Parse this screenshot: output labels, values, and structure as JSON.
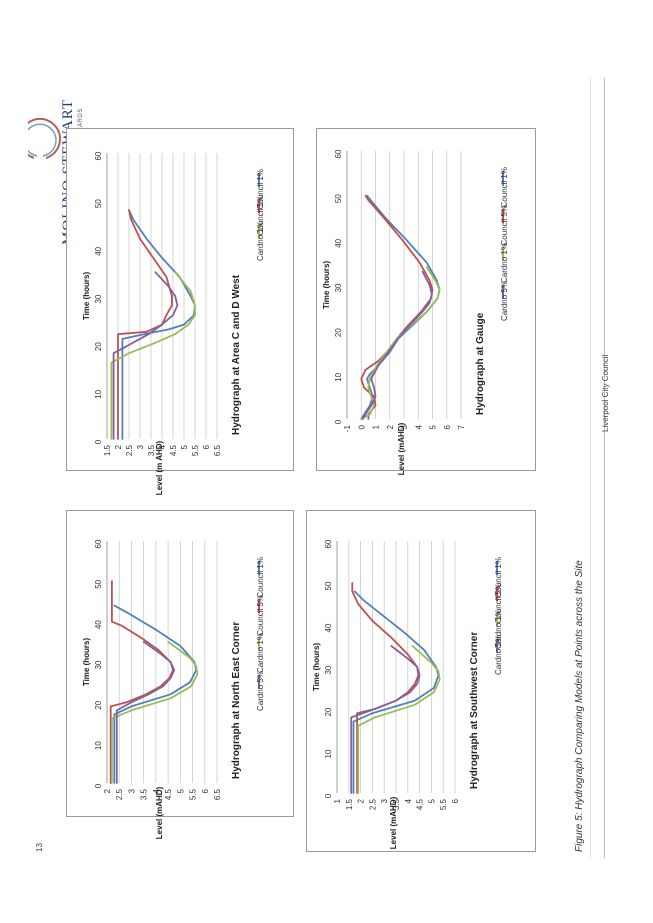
{
  "header": {
    "logo_main": "MOLINO STEWART",
    "logo_sub": "ENVIRONMENT & NATURAL HAZARDS"
  },
  "footer": {
    "page_number": "13",
    "organization": "Liverpool City Council"
  },
  "figure": {
    "caption": "Figure 5:   Hydrograph Comparing Models at Points across the Site"
  },
  "colors": {
    "council_1": "#4f81bd",
    "council_5": "#c0504d",
    "cardno_1": "#9bbb59",
    "cardno_5": "#8064a2"
  },
  "chart_data": [
    {
      "id": "ne",
      "type": "line",
      "title": "Hydrograph at North East Corner",
      "xlabel": "Time (hours)",
      "ylabel": "Level (mAHD)",
      "xlim": [
        0,
        60
      ],
      "ylim": [
        2,
        6.5
      ],
      "xticks": [
        "0",
        "10",
        "20",
        "30",
        "40",
        "50",
        "60"
      ],
      "yticks": [
        "2",
        "2.5",
        "3",
        "3.5",
        "4",
        "4.5",
        "5",
        "5.5",
        "6",
        "6.5"
      ],
      "grid": true,
      "legend": [
        "Council 1%",
        "Council 5%",
        "Cardno 1%",
        "Cardno 5%"
      ],
      "series": [
        {
          "name": "Council 1%",
          "x": [
            0,
            17,
            19,
            22,
            25,
            28,
            30,
            34,
            38,
            42,
            44
          ],
          "y": [
            2.3,
            2.3,
            3.0,
            4.6,
            5.4,
            5.65,
            5.58,
            5.0,
            4.0,
            2.9,
            2.3
          ]
        },
        {
          "name": "Council 5%",
          "x": [
            0,
            19,
            20,
            22,
            24,
            26,
            28,
            30,
            33,
            36,
            39,
            40,
            50
          ],
          "y": [
            2.15,
            2.15,
            2.8,
            3.6,
            4.2,
            4.55,
            4.7,
            4.6,
            4.1,
            3.4,
            2.6,
            2.2,
            2.2
          ]
        },
        {
          "name": "Cardno 1%",
          "x": [
            0,
            16,
            18,
            21,
            24,
            27,
            29,
            31,
            35
          ],
          "y": [
            2.2,
            2.2,
            3.0,
            4.6,
            5.45,
            5.7,
            5.65,
            5.4,
            4.5
          ]
        },
        {
          "name": "Cardno 5%",
          "x": [
            0,
            18,
            20,
            22,
            24,
            26,
            28,
            30,
            32,
            35
          ],
          "y": [
            2.4,
            2.4,
            3.0,
            3.7,
            4.3,
            4.6,
            4.75,
            4.6,
            4.2,
            3.5
          ]
        }
      ]
    },
    {
      "id": "sw",
      "type": "line",
      "title": "Hydrograph at Southwest Corner",
      "xlabel": "Time (hours)",
      "ylabel": "Level (mAHD)",
      "xlim": [
        0,
        60
      ],
      "ylim": [
        1,
        6
      ],
      "xticks": [
        "0",
        "10",
        "20",
        "30",
        "40",
        "50",
        "60"
      ],
      "yticks": [
        "1",
        "1.5",
        "2",
        "2.5",
        "3",
        "3.5",
        "4",
        "4.5",
        "5",
        "5.5",
        "6"
      ],
      "grid": true,
      "legend": [
        "Council 1%",
        "Council 5%",
        "Cardno 1%",
        "Cardno 5%"
      ],
      "series": [
        {
          "name": "Council 1%",
          "x": [
            0,
            17,
            19,
            22,
            25,
            28,
            30,
            34,
            38,
            42,
            46,
            48
          ],
          "y": [
            1.7,
            1.7,
            2.5,
            4.3,
            5.1,
            5.3,
            5.2,
            4.7,
            3.9,
            3.0,
            2.1,
            1.75
          ]
        },
        {
          "name": "Council 5%",
          "x": [
            0,
            19,
            20,
            22,
            24,
            26,
            28,
            30,
            33,
            37,
            41,
            45,
            48,
            50
          ],
          "y": [
            1.85,
            1.85,
            2.6,
            3.5,
            4.0,
            4.3,
            4.45,
            4.4,
            4.0,
            3.3,
            2.5,
            1.9,
            1.65,
            1.65
          ]
        },
        {
          "name": "Cardno 1%",
          "x": [
            0,
            16,
            18,
            21,
            24,
            27,
            29,
            31,
            35
          ],
          "y": [
            1.9,
            1.9,
            2.6,
            4.3,
            5.1,
            5.35,
            5.3,
            5.0,
            4.2
          ]
        },
        {
          "name": "Cardno 5%",
          "x": [
            0,
            18,
            20,
            22,
            24,
            26,
            28,
            30,
            32,
            35
          ],
          "y": [
            1.6,
            1.6,
            2.6,
            3.5,
            4.1,
            4.4,
            4.5,
            4.4,
            4.0,
            3.3
          ]
        }
      ]
    },
    {
      "id": "acd",
      "type": "line",
      "title": "Hydrograph at Area C and D West",
      "xlabel": "Time (hours)",
      "ylabel": "Level (m AHD)",
      "xlim": [
        0,
        60
      ],
      "ylim": [
        1.5,
        6.5
      ],
      "xticks": [
        "0",
        "10",
        "20",
        "30",
        "40",
        "50",
        "60"
      ],
      "yticks": [
        "1.5",
        "2",
        "2.5",
        "3",
        "3.5",
        "4",
        "4.5",
        "5",
        "5.5",
        "6",
        "6.5"
      ],
      "grid": true,
      "legend": [
        "Council 1%",
        "Council 5%",
        "Cardno 1%"
      ],
      "series": [
        {
          "name": "Council 1%",
          "x": [
            0,
            21,
            22,
            23,
            24,
            26,
            28,
            30,
            34,
            38,
            42,
            46,
            48
          ],
          "y": [
            2.2,
            2.2,
            3.2,
            4.3,
            5.0,
            5.45,
            5.5,
            5.3,
            4.8,
            4.0,
            3.3,
            2.7,
            2.5
          ]
        },
        {
          "name": "Council 5%",
          "x": [
            0,
            22,
            22.5,
            24,
            26,
            28,
            30,
            34,
            38,
            42,
            46,
            48
          ],
          "y": [
            2.0,
            2.0,
            3.3,
            4.0,
            4.2,
            4.45,
            4.45,
            4.2,
            3.6,
            3.0,
            2.6,
            2.5
          ]
        },
        {
          "name": "Cardno 1%",
          "x": [
            0,
            16,
            18,
            20,
            22,
            24,
            26,
            28,
            31,
            35
          ],
          "y": [
            1.7,
            1.7,
            2.5,
            3.6,
            4.6,
            5.2,
            5.5,
            5.5,
            5.3,
            4.6
          ]
        },
        {
          "name": "Cardno 5%",
          "x": [
            0,
            18,
            20,
            22,
            24,
            26,
            28,
            30,
            32,
            35
          ],
          "y": [
            1.8,
            1.8,
            2.6,
            3.4,
            4.0,
            4.5,
            4.7,
            4.6,
            4.3,
            3.7
          ]
        }
      ]
    },
    {
      "id": "gauge",
      "type": "line",
      "title": "Hydrograph at Gauge",
      "xlabel": "Time (hours)",
      "ylabel": "Level (mAHD)",
      "xlim": [
        0,
        60
      ],
      "ylim": [
        -1,
        7
      ],
      "xticks": [
        "0",
        "10",
        "20",
        "30",
        "40",
        "50",
        "60"
      ],
      "yticks": [
        "-1",
        "0",
        "1",
        "2",
        "3",
        "4",
        "5",
        "6",
        "7"
      ],
      "grid": true,
      "legend": [
        "Council 1%",
        "Council 5%",
        "Cardno 1%",
        "Cardno 5%"
      ],
      "series": [
        {
          "name": "Council 1%",
          "x": [
            0,
            1,
            3,
            5,
            7,
            9,
            10,
            12,
            15,
            18,
            21,
            24,
            27,
            29,
            31,
            35,
            40,
            45,
            50
          ],
          "y": [
            0,
            0.2,
            0.6,
            0.8,
            0.6,
            0.4,
            0.6,
            1.2,
            2.0,
            2.6,
            3.6,
            4.6,
            5.35,
            5.5,
            5.3,
            4.6,
            3.2,
            1.7,
            0.4
          ]
        },
        {
          "name": "Council 5%",
          "x": [
            0,
            1,
            3,
            5,
            7,
            9,
            11,
            13,
            15,
            18,
            21,
            24,
            27,
            29,
            31,
            35,
            40,
            45,
            49,
            50
          ],
          "y": [
            0.5,
            0.5,
            1.0,
            0.9,
            0.2,
            0.0,
            0.3,
            1.2,
            1.8,
            2.5,
            3.3,
            4.2,
            4.9,
            5.0,
            4.8,
            4.1,
            2.9,
            1.6,
            0.5,
            0.3
          ]
        },
        {
          "name": "Cardno 1%",
          "x": [
            0,
            1,
            3,
            5,
            7,
            9,
            12,
            15,
            18,
            21,
            24,
            27,
            29,
            31,
            34
          ],
          "y": [
            0,
            0.6,
            0.9,
            0.7,
            0.5,
            0.6,
            1.1,
            1.8,
            2.5,
            3.5,
            4.6,
            5.35,
            5.5,
            5.2,
            4.6
          ]
        },
        {
          "name": "Cardno 5%",
          "x": [
            0,
            1,
            3,
            5,
            7,
            9,
            12,
            15,
            18,
            21,
            24,
            26,
            28,
            30,
            33
          ],
          "y": [
            0.1,
            0.3,
            0.7,
            1.0,
            0.9,
            0.7,
            1.2,
            1.9,
            2.6,
            3.4,
            4.3,
            4.8,
            4.95,
            4.8,
            4.3
          ]
        }
      ]
    }
  ]
}
